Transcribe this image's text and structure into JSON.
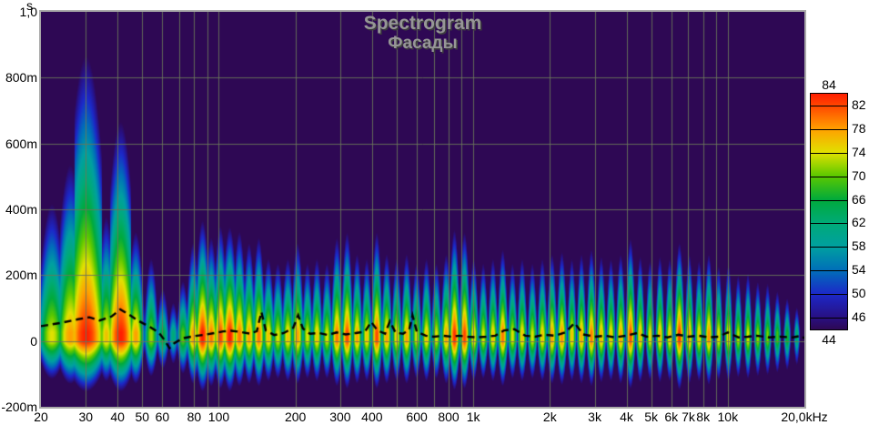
{
  "title": {
    "text": "Spectrogram",
    "subtitle": "Фасады"
  },
  "colors": {
    "page_bg": "#ffffff",
    "plot_bg": "#2e0854",
    "grid": "#69765a",
    "frame": "#a9a9a9",
    "title_text": "#969696",
    "title_shadow": "#3d3d3d",
    "decay_curve": "#000000",
    "axis_text": "#000000"
  },
  "axes": {
    "x": {
      "scale": "log",
      "min_hz": 20,
      "max_hz": 20000,
      "ticks": [
        {
          "f": 20,
          "label": "20"
        },
        {
          "f": 30,
          "label": "30"
        },
        {
          "f": 40,
          "label": "40"
        },
        {
          "f": 50,
          "label": "50"
        },
        {
          "f": 60,
          "label": "60"
        },
        {
          "f": 80,
          "label": "80"
        },
        {
          "f": 100,
          "label": "100"
        },
        {
          "f": 200,
          "label": "200"
        },
        {
          "f": 300,
          "label": "300"
        },
        {
          "f": 400,
          "label": "400"
        },
        {
          "f": 600,
          "label": "600"
        },
        {
          "f": 800,
          "label": "800"
        },
        {
          "f": 1000,
          "label": "1k"
        },
        {
          "f": 2000,
          "label": "2k"
        },
        {
          "f": 3000,
          "label": "3k"
        },
        {
          "f": 4000,
          "label": "4k"
        },
        {
          "f": 5000,
          "label": "5k"
        },
        {
          "f": 6000,
          "label": "6k"
        },
        {
          "f": 7000,
          "label": "7k"
        },
        {
          "f": 8000,
          "label": "8k"
        },
        {
          "f": 10000,
          "label": "10k"
        },
        {
          "f": 20000,
          "label": "20,0kHz"
        }
      ],
      "grid_freqs": [
        30,
        40,
        50,
        60,
        70,
        80,
        90,
        100,
        200,
        300,
        400,
        500,
        600,
        700,
        800,
        900,
        1000,
        2000,
        3000,
        4000,
        5000,
        6000,
        7000,
        8000,
        9000,
        10000
      ]
    },
    "y": {
      "unit": "s",
      "min_ms": -200,
      "max_ms": 1000,
      "ticks": [
        {
          "ms": 1000,
          "label": "1,0"
        },
        {
          "ms": 800,
          "label": "800m"
        },
        {
          "ms": 600,
          "label": "600m"
        },
        {
          "ms": 400,
          "label": "400m"
        },
        {
          "ms": 200,
          "label": "200m"
        },
        {
          "ms": 0,
          "label": "0"
        },
        {
          "ms": -200,
          "label": "-200m"
        }
      ],
      "grid_ms": [
        800,
        600,
        400,
        200,
        0
      ]
    }
  },
  "legend": {
    "top_label": "84",
    "bottom_label": "44",
    "max_db": 84,
    "min_db": 44,
    "ticks": [
      82,
      78,
      74,
      70,
      66,
      62,
      58,
      54,
      50,
      46
    ]
  },
  "chart_data": {
    "type": "heatmap",
    "title": "Spectrogram",
    "subtitle": "Фасады",
    "x_axis": "Frequency, Hz (log scale 20 to 20000)",
    "y_axis": "Time, s (-200m to 1,0)",
    "z_axis": "Level, dB (color scale 44 to 84)",
    "colormap_stops": [
      {
        "db": 44,
        "c": "#2e0854"
      },
      {
        "db": 46,
        "c": "#281082"
      },
      {
        "db": 50,
        "c": "#1c28c8"
      },
      {
        "db": 54,
        "c": "#006eb9"
      },
      {
        "db": 58,
        "c": "#00a0a0"
      },
      {
        "db": 62,
        "c": "#00aa78"
      },
      {
        "db": 66,
        "c": "#00aa3c"
      },
      {
        "db": 70,
        "c": "#5ac800"
      },
      {
        "db": 74,
        "c": "#e1e100"
      },
      {
        "db": 78,
        "c": "#ffa000"
      },
      {
        "db": 82,
        "c": "#ff4600"
      },
      {
        "db": 84,
        "c": "#ff1e00"
      }
    ],
    "hold_ms": 28,
    "pre_ring_ms_per_db": 3.8,
    "gauss_falloff_db": 18,
    "peaks_format": [
      "freq_hz",
      "level_db",
      "decay_ms_per_db",
      "half_width_log10"
    ],
    "peaks": [
      [
        22,
        74,
        13,
        0.05
      ],
      [
        26,
        78,
        15,
        0.05
      ],
      [
        30,
        84,
        21,
        0.07
      ],
      [
        36,
        76,
        11,
        0.03
      ],
      [
        41,
        84,
        16,
        0.05
      ],
      [
        47,
        78,
        9,
        0.028
      ],
      [
        50.5,
        51,
        2000,
        0.006
      ],
      [
        54,
        72,
        8,
        0.024
      ],
      [
        60,
        66,
        6,
        0.024
      ],
      [
        66,
        62,
        5,
        0.02
      ],
      [
        72,
        70,
        6,
        0.022
      ],
      [
        79,
        78,
        8,
        0.022
      ],
      [
        86,
        84,
        8.5,
        0.024
      ],
      [
        93,
        80,
        8,
        0.022
      ],
      [
        101,
        82,
        8.5,
        0.022
      ],
      [
        110,
        84,
        8,
        0.024
      ],
      [
        120,
        80,
        8.5,
        0.022
      ],
      [
        131,
        78,
        8,
        0.02
      ],
      [
        143,
        80,
        8,
        0.02
      ],
      [
        156,
        76,
        7,
        0.02
      ],
      [
        170,
        74,
        7,
        0.02
      ],
      [
        186,
        76,
        7,
        0.02
      ],
      [
        203,
        78,
        8,
        0.02
      ],
      [
        222,
        74,
        7,
        0.018
      ],
      [
        242,
        76,
        7,
        0.018
      ],
      [
        265,
        74,
        7,
        0.018
      ],
      [
        290,
        80,
        8,
        0.018
      ],
      [
        318,
        82,
        8,
        0.018
      ],
      [
        348,
        78,
        7,
        0.017
      ],
      [
        380,
        76,
        7,
        0.017
      ],
      [
        416,
        82,
        8,
        0.017
      ],
      [
        455,
        78,
        7,
        0.017
      ],
      [
        498,
        76,
        7,
        0.017
      ],
      [
        545,
        78,
        7,
        0.017
      ],
      [
        596,
        74,
        7,
        0.017
      ],
      [
        652,
        76,
        7,
        0.017
      ],
      [
        713,
        74,
        7,
        0.017
      ],
      [
        780,
        78,
        7,
        0.017
      ],
      [
        840,
        83,
        8,
        0.017
      ],
      [
        920,
        82,
        8,
        0.017
      ],
      [
        1000,
        76,
        7,
        0.016
      ],
      [
        1090,
        74,
        7,
        0.016
      ],
      [
        1190,
        76,
        7,
        0.016
      ],
      [
        1300,
        80,
        7,
        0.016
      ],
      [
        1420,
        74,
        7,
        0.016
      ],
      [
        1550,
        76,
        7,
        0.016
      ],
      [
        1700,
        74,
        7,
        0.016
      ],
      [
        1860,
        76,
        7,
        0.016
      ],
      [
        2030,
        78,
        7,
        0.016
      ],
      [
        2220,
        79,
        7,
        0.016
      ],
      [
        2430,
        76,
        7,
        0.015
      ],
      [
        2650,
        78,
        7,
        0.015
      ],
      [
        2900,
        80,
        7,
        0.015
      ],
      [
        3170,
        77,
        7,
        0.015
      ],
      [
        3460,
        76,
        7,
        0.015
      ],
      [
        3780,
        78,
        7,
        0.015
      ],
      [
        4130,
        82,
        7.5,
        0.015
      ],
      [
        4510,
        77,
        7,
        0.014
      ],
      [
        4930,
        75,
        7,
        0.014
      ],
      [
        5390,
        77,
        7,
        0.014
      ],
      [
        5890,
        76,
        7,
        0.014
      ],
      [
        6430,
        83,
        7,
        0.015
      ],
      [
        7030,
        78,
        7,
        0.014
      ],
      [
        7680,
        76,
        6.8,
        0.014
      ],
      [
        8390,
        79,
        6.8,
        0.014
      ],
      [
        9170,
        75,
        6.5,
        0.013
      ],
      [
        10020,
        76,
        6.5,
        0.013
      ],
      [
        10950,
        73,
        6,
        0.013
      ],
      [
        11960,
        74,
        6,
        0.013
      ],
      [
        13070,
        72,
        5.5,
        0.013
      ],
      [
        14280,
        71,
        5.5,
        0.013
      ],
      [
        15600,
        69,
        5,
        0.013
      ],
      [
        17050,
        67,
        4.5,
        0.013
      ],
      [
        18600,
        63,
        4,
        0.012
      ]
    ],
    "decay_curve_format": [
      "freq_hz",
      "time_ms"
    ],
    "decay_curve": [
      [
        20,
        45
      ],
      [
        24,
        55
      ],
      [
        28,
        66
      ],
      [
        31,
        72
      ],
      [
        34,
        62
      ],
      [
        38,
        75
      ],
      [
        41,
        96
      ],
      [
        44,
        82
      ],
      [
        48,
        62
      ],
      [
        53,
        45
      ],
      [
        58,
        26
      ],
      [
        61,
        4
      ],
      [
        64,
        -22
      ],
      [
        67,
        -6
      ],
      [
        72,
        8
      ],
      [
        80,
        15
      ],
      [
        88,
        19
      ],
      [
        96,
        24
      ],
      [
        104,
        29
      ],
      [
        112,
        31
      ],
      [
        122,
        27
      ],
      [
        133,
        22
      ],
      [
        141,
        30
      ],
      [
        147,
        88
      ],
      [
        153,
        32
      ],
      [
        165,
        18
      ],
      [
        180,
        24
      ],
      [
        196,
        40
      ],
      [
        205,
        78
      ],
      [
        214,
        38
      ],
      [
        228,
        22
      ],
      [
        248,
        24
      ],
      [
        268,
        18
      ],
      [
        290,
        26
      ],
      [
        315,
        20
      ],
      [
        345,
        24
      ],
      [
        375,
        28
      ],
      [
        397,
        58
      ],
      [
        420,
        32
      ],
      [
        450,
        22
      ],
      [
        470,
        60
      ],
      [
        495,
        25
      ],
      [
        530,
        22
      ],
      [
        560,
        35
      ],
      [
        577,
        78
      ],
      [
        600,
        28
      ],
      [
        650,
        16
      ],
      [
        700,
        13
      ],
      [
        760,
        16
      ],
      [
        820,
        13
      ],
      [
        880,
        16
      ],
      [
        950,
        13
      ],
      [
        1030,
        11
      ],
      [
        1120,
        13
      ],
      [
        1220,
        16
      ],
      [
        1320,
        32
      ],
      [
        1450,
        36
      ],
      [
        1600,
        16
      ],
      [
        1750,
        13
      ],
      [
        1900,
        19
      ],
      [
        2100,
        16
      ],
      [
        2300,
        26
      ],
      [
        2500,
        55
      ],
      [
        2700,
        20
      ],
      [
        3000,
        13
      ],
      [
        3300,
        16
      ],
      [
        3600,
        11
      ],
      [
        4000,
        16
      ],
      [
        4400,
        24
      ],
      [
        4800,
        13
      ],
      [
        5300,
        16
      ],
      [
        5800,
        11
      ],
      [
        6400,
        19
      ],
      [
        7000,
        13
      ],
      [
        7700,
        16
      ],
      [
        8400,
        11
      ],
      [
        9200,
        13
      ],
      [
        10000,
        26
      ],
      [
        11000,
        11
      ],
      [
        12000,
        13
      ],
      [
        13000,
        16
      ],
      [
        14500,
        11
      ],
      [
        16000,
        13
      ],
      [
        18000,
        11
      ],
      [
        19500,
        16
      ],
      [
        20000,
        8
      ]
    ]
  }
}
